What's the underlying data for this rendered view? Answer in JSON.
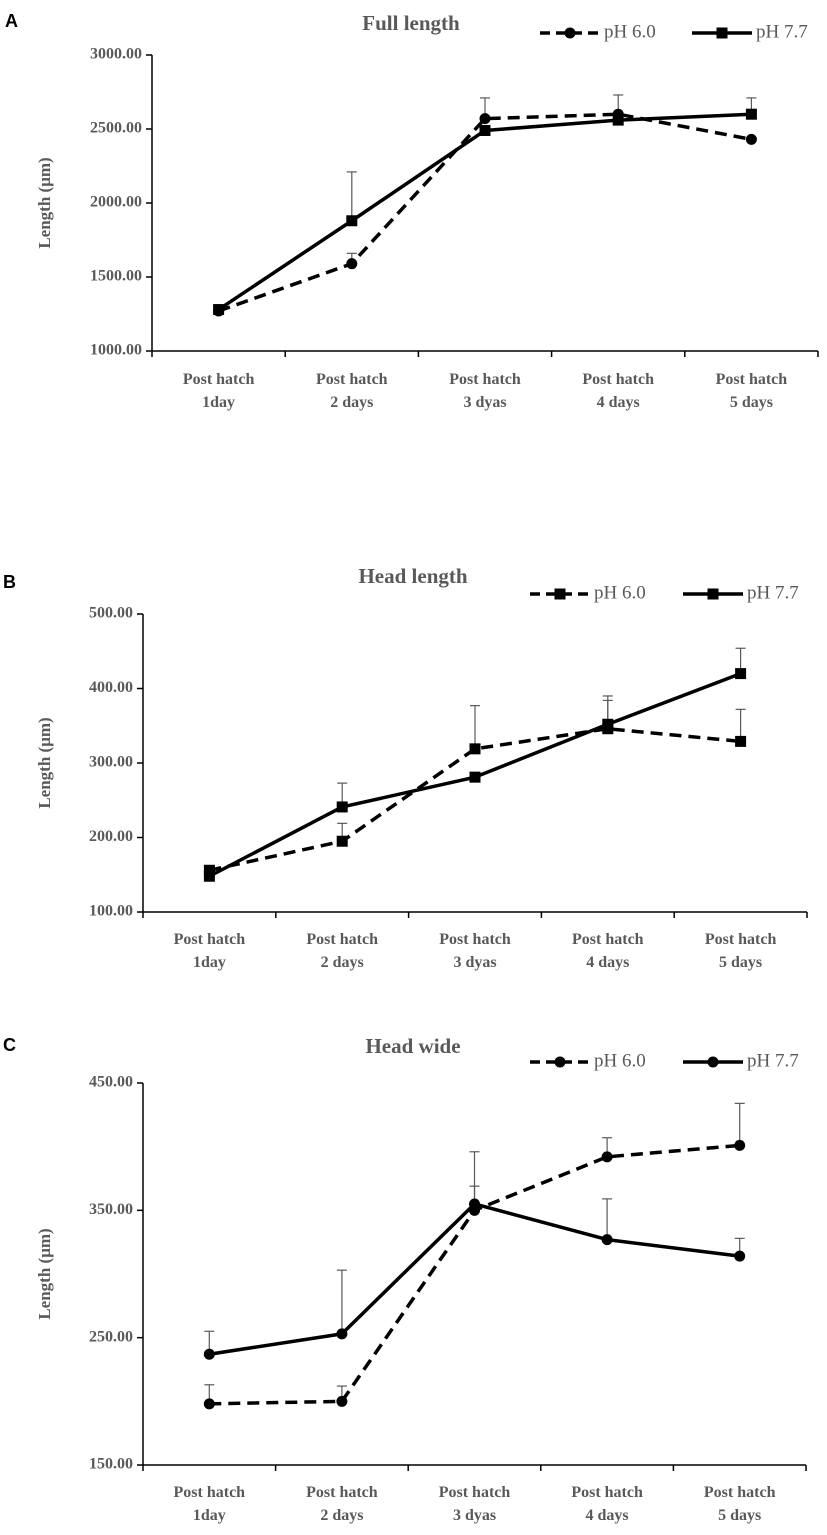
{
  "chart_data": [
    {
      "panel_label": "A",
      "type": "line",
      "title": "Full length",
      "ylabel": "Length (μm)",
      "ylim": [
        1000,
        3000
      ],
      "yticks": [
        "1000.00",
        "1500.00",
        "2000.00",
        "2500.00",
        "3000.00"
      ],
      "categories": [
        [
          "Post hatch",
          "1day"
        ],
        [
          "Post hatch",
          "2 days"
        ],
        [
          "Post hatch",
          "3 dyas"
        ],
        [
          "Post hatch",
          "4 days"
        ],
        [
          "Post hatch",
          "5 days"
        ]
      ],
      "series": [
        {
          "name": "pH 6.0",
          "style": "dashed",
          "marker": "circle",
          "values": [
            1270,
            1590,
            2570,
            2600,
            2430
          ],
          "errors": [
            0,
            70,
            140,
            130,
            0
          ]
        },
        {
          "name": "pH 7.7",
          "style": "solid",
          "marker": "square",
          "values": [
            1280,
            1880,
            2490,
            2560,
            2600
          ],
          "errors": [
            0,
            330,
            0,
            0,
            110
          ]
        }
      ]
    },
    {
      "panel_label": "B",
      "type": "line",
      "title": "Head length",
      "ylabel": "Length (μm)",
      "ylim": [
        100,
        500
      ],
      "yticks": [
        "100.00",
        "200.00",
        "300.00",
        "400.00",
        "500.00"
      ],
      "categories": [
        [
          "Post hatch",
          "1day"
        ],
        [
          "Post hatch",
          "2 days"
        ],
        [
          "Post hatch",
          "3 dyas"
        ],
        [
          "Post hatch",
          "4 days"
        ],
        [
          "Post hatch",
          "5 days"
        ]
      ],
      "series": [
        {
          "name": "pH 6.0",
          "style": "dashed",
          "marker": "square",
          "values": [
            156,
            195,
            319,
            346,
            329
          ],
          "errors": [
            0,
            24,
            58,
            38,
            43
          ]
        },
        {
          "name": "pH 7.7",
          "style": "solid",
          "marker": "square",
          "values": [
            148,
            241,
            281,
            352,
            420
          ],
          "errors": [
            0,
            32,
            0,
            38,
            34
          ]
        }
      ]
    },
    {
      "panel_label": "C",
      "type": "line",
      "title": "Head wide",
      "ylabel": "Length (μm)",
      "ylim": [
        150,
        450
      ],
      "yticks": [
        "150.00",
        "250.00",
        "350.00",
        "450.00"
      ],
      "categories": [
        [
          "Post hatch",
          "1day"
        ],
        [
          "Post hatch",
          "2 days"
        ],
        [
          "Post hatch",
          "3 dyas"
        ],
        [
          "Post hatch",
          "4 days"
        ],
        [
          "Post hatch",
          "5 days"
        ]
      ],
      "series": [
        {
          "name": "pH 6.0",
          "style": "dashed",
          "marker": "circle",
          "values": [
            198,
            200,
            350,
            392,
            401
          ],
          "errors": [
            15,
            12,
            46,
            15,
            33
          ]
        },
        {
          "name": "pH 7.7",
          "style": "solid",
          "marker": "circle",
          "values": [
            237,
            253,
            355,
            327,
            314
          ],
          "errors": [
            18,
            50,
            14,
            32,
            14
          ]
        }
      ]
    }
  ],
  "colors": {
    "line": "#000000",
    "error_bar": "#595959",
    "axis": "#000000",
    "text": "#595959"
  }
}
